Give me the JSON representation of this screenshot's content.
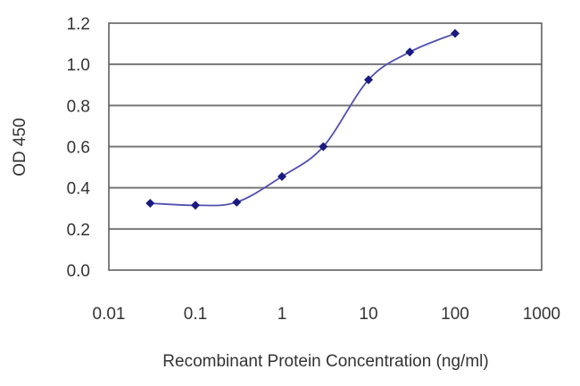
{
  "chart_data": {
    "type": "line",
    "title": "",
    "xlabel": "Recombinant Protein Concentration (ng/ml)",
    "ylabel": "OD 450",
    "xscale": "log",
    "xlim": [
      0.01,
      1000
    ],
    "ylim": [
      0.0,
      1.2
    ],
    "x_ticks": [
      "0.01",
      "0.1",
      "1",
      "10",
      "100",
      "1000"
    ],
    "y_ticks": [
      "0.0",
      "0.2",
      "0.4",
      "0.6",
      "0.8",
      "1.0",
      "1.2"
    ],
    "grid": {
      "horizontal": true,
      "vertical": false
    },
    "legend": null,
    "series": [
      {
        "name": "OD 450",
        "color": "#1f1f8f",
        "marker": "diamond",
        "smooth": true,
        "x": [
          0.03,
          0.1,
          0.3,
          1,
          3,
          10,
          30,
          100
        ],
        "values": [
          0.325,
          0.315,
          0.33,
          0.455,
          0.6,
          0.925,
          1.06,
          1.15
        ]
      }
    ]
  },
  "colors": {
    "line": "#5050b0",
    "marker": "#1a1a80",
    "grid": "#777777",
    "frame": "#555555",
    "text": "#333333"
  }
}
